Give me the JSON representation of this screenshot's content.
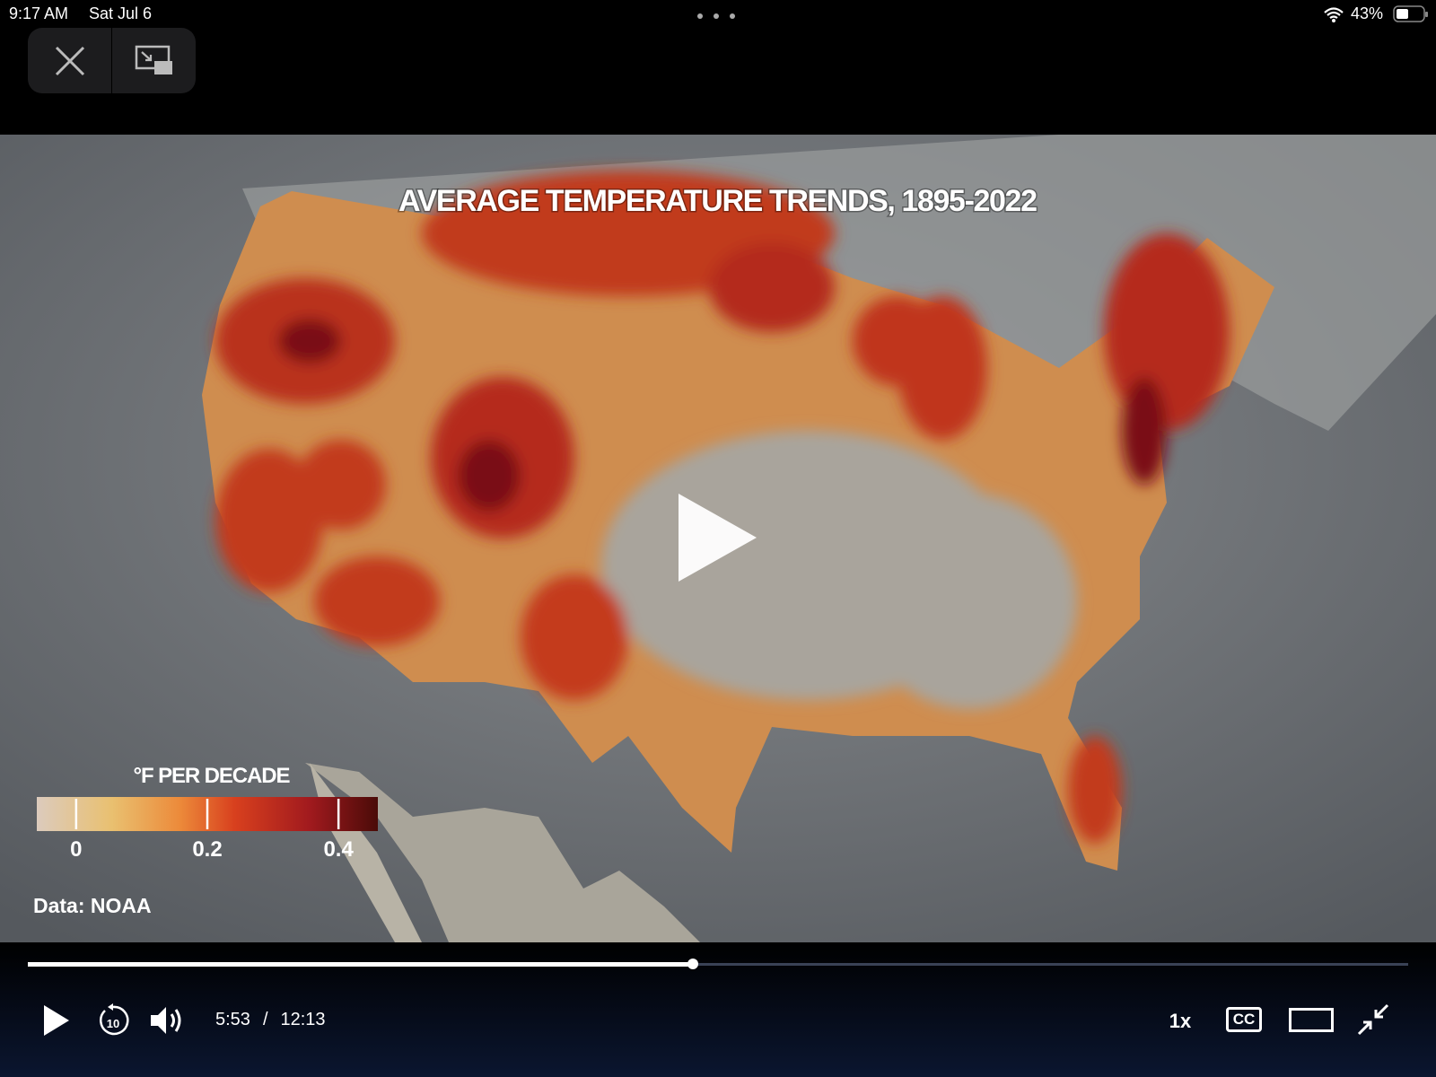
{
  "status_bar": {
    "time": "9:17 AM",
    "date": "Sat Jul 6",
    "battery": "43%"
  },
  "video": {
    "title": "AVERAGE TEMPERATURE TRENDS, 1895-2022",
    "legend": {
      "title": "°F PER DECADE",
      "range": [
        -0.06,
        0.46
      ],
      "ticks": [
        0,
        0.2,
        0.4
      ]
    },
    "source": "Data: NOAA"
  },
  "controls": {
    "skip_seconds": 10,
    "current_time": "5:53",
    "separator": "/",
    "duration": "12:13",
    "speed": "1x",
    "captions": "CC"
  }
}
